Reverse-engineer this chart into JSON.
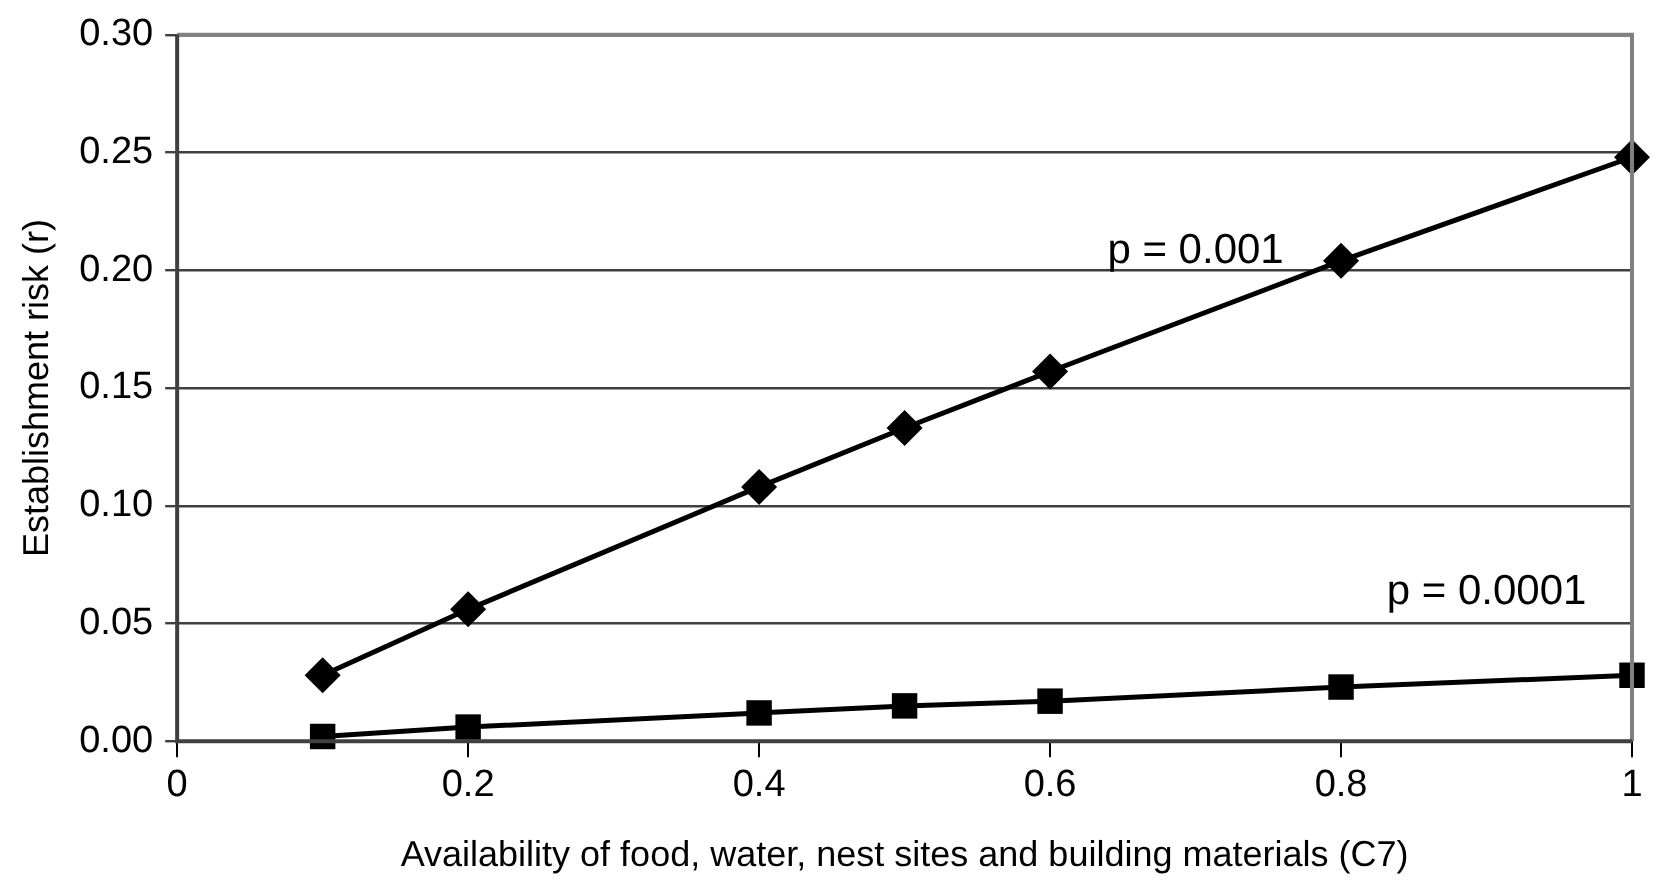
{
  "chart_data": {
    "type": "line",
    "xlabel": "Availability of food, water, nest sites and building materials (C7)",
    "ylabel": "Establishment risk (r)",
    "x": [
      0.1,
      0.2,
      0.4,
      0.5,
      0.6,
      0.8,
      1
    ],
    "series": [
      {
        "name": "p = 0.001",
        "color": "#000000",
        "marker": "diamond",
        "values": [
          0.028,
          0.056,
          0.108,
          0.133,
          0.157,
          0.204,
          0.248
        ]
      },
      {
        "name": "p = 0.0001",
        "color": "#000000",
        "marker": "square",
        "values": [
          0.002,
          0.006,
          0.012,
          0.015,
          0.017,
          0.023,
          0.028
        ]
      }
    ],
    "xlim": [
      0,
      1
    ],
    "xticks": [
      0,
      0.2,
      0.4,
      0.6,
      0.8,
      1
    ],
    "ylim": [
      0,
      0.3
    ],
    "yticks": [
      {
        "value": 0,
        "label": "0.00"
      },
      {
        "value": 0.05,
        "label": "0.05"
      },
      {
        "value": 0.1,
        "label": "0.10"
      },
      {
        "value": 0.15,
        "label": "0.15"
      },
      {
        "value": 0.2,
        "label": "0.20"
      },
      {
        "value": 0.25,
        "label": "0.25"
      },
      {
        "value": 0.3,
        "label": "0.30"
      }
    ],
    "grid": "y",
    "legend": false,
    "line_style": "solid"
  }
}
